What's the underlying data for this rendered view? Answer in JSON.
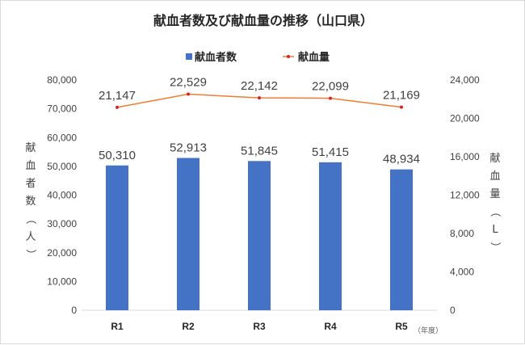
{
  "chart_data": {
    "type": "bar",
    "title": "献血者数及び献血量の推移（山口県）",
    "categories": [
      "R1",
      "R2",
      "R3",
      "R4",
      "R5"
    ],
    "x_unit_label": "（年度）",
    "series": [
      {
        "name": "献血者数",
        "type": "bar",
        "axis": "left",
        "color": "#4472c4",
        "values": [
          50310,
          52913,
          51845,
          51415,
          48934
        ],
        "labels": [
          "50,310",
          "52,913",
          "51,845",
          "51,415",
          "48,934"
        ]
      },
      {
        "name": "献血量",
        "type": "line",
        "axis": "right",
        "color": "#ed7d31",
        "marker_color": "#e02020",
        "values": [
          21147,
          22529,
          22142,
          22099,
          21169
        ],
        "labels": [
          "21,147",
          "22,529",
          "22,142",
          "22,099",
          "21,169"
        ]
      }
    ],
    "left_axis": {
      "title_chars": [
        "献",
        "血",
        "者",
        "数",
        "（",
        "人",
        "）"
      ],
      "range": [
        0,
        80000
      ],
      "ticks": [
        "0",
        "10,000",
        "20,000",
        "30,000",
        "40,000",
        "50,000",
        "60,000",
        "70,000",
        "80,000"
      ]
    },
    "right_axis": {
      "title_chars": [
        "献",
        "血",
        "量",
        "（",
        "L",
        "）"
      ],
      "range": [
        0,
        24000
      ],
      "ticks": [
        "0",
        "4,000",
        "8,000",
        "12,000",
        "16,000",
        "20,000",
        "24,000"
      ]
    },
    "grid": false,
    "legend_position": "top-center"
  }
}
